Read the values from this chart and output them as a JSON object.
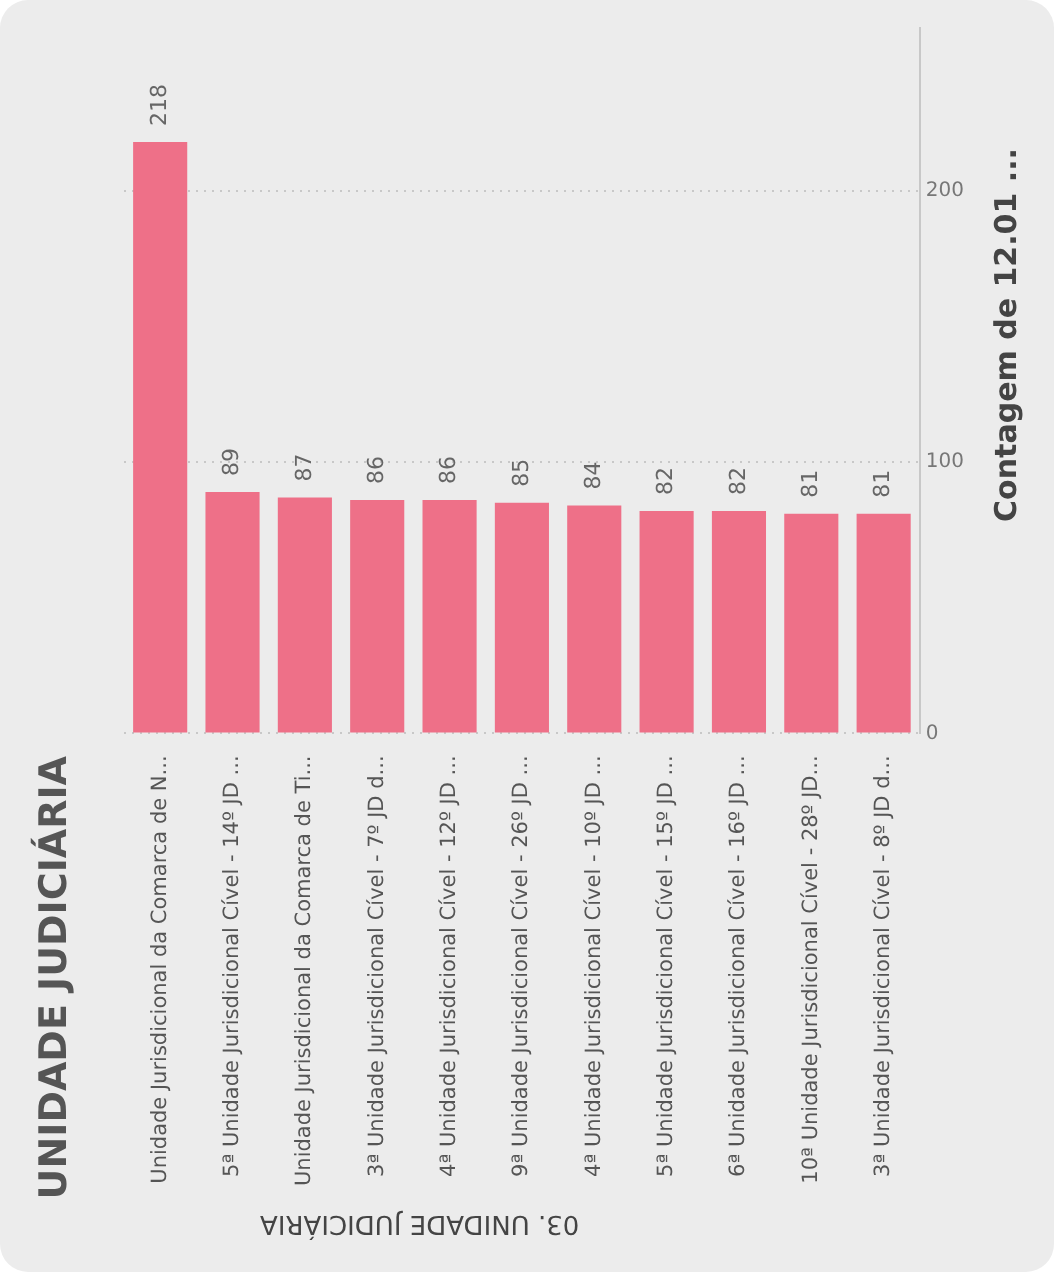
{
  "chart_data": {
    "type": "bar",
    "title": "UNIDADE JUDICIÁRIA",
    "xlabel": "03. UNIDADE JUDICIÁRIA",
    "ylabel": "Contagem de 12.01 ...",
    "categories": [
      "Unidade Jurisdicional da Comarca de N...",
      "5ª Unidade Jurisdicional Cível - 14º JD ...",
      "Unidade Jurisdicional da Comarca de Ti...",
      "3ª Unidade Jurisdicional Cível - 7º JD d...",
      "4ª Unidade Jurisdicional Cível - 12º JD ...",
      "9ª Unidade Jurisdicional Cível - 26º JD ...",
      "4ª Unidade Jurisdicional Cível - 10º JD ...",
      "5ª Unidade Jurisdicional Cível - 15º JD ...",
      "6ª Unidade Jurisdicional Cível - 16º JD ...",
      "10ª Unidade Jurisdicional Cível - 28º JD...",
      "3ª Unidade Jurisdicional Cível - 8º JD d..."
    ],
    "values": [
      218,
      89,
      87,
      86,
      86,
      85,
      84,
      82,
      82,
      81,
      81
    ],
    "color": "#ee7088",
    "ylim": [
      0,
      260
    ],
    "yticks": [
      0,
      100,
      200
    ],
    "grid": "y",
    "line_style": "dotted",
    "data_labels": true
  }
}
